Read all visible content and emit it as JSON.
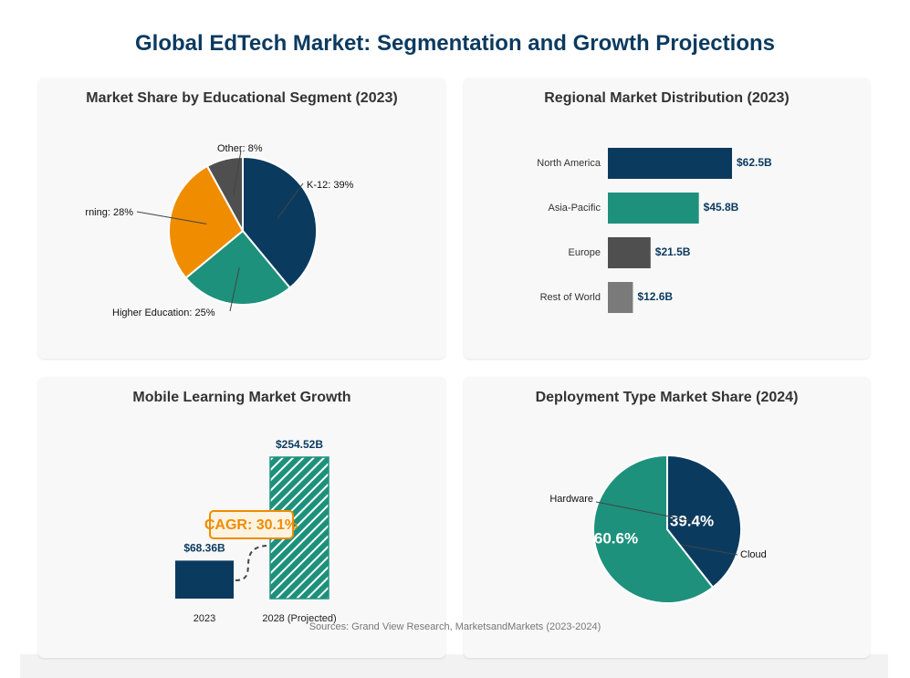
{
  "title": "Global EdTech Market: Segmentation and Growth Projections",
  "sources": "Sources: Grand View Research, MarketsandMarkets (2023-2024)",
  "colors": {
    "navy": "#0b3a5f",
    "teal": "#1d917c",
    "orange": "#f08c00",
    "dark_gray": "#4f4f4f",
    "gray": "#7a7a7a"
  },
  "chart_data": [
    {
      "type": "pie",
      "title": "Market Share by Educational Segment (2023)",
      "labels": [
        "K-12",
        "Higher Education",
        "Corporate Learning",
        "Other"
      ],
      "values": [
        39,
        25,
        28,
        8
      ],
      "display_labels": [
        "K-12: 39%",
        "Higher Education: 25%",
        "rning: 28%",
        "Other: 8%"
      ],
      "colors": [
        "#0b3a5f",
        "#1d917c",
        "#f08c00",
        "#4f4f4f"
      ]
    },
    {
      "type": "bar",
      "orientation": "horizontal",
      "title": "Regional Market Distribution (2023)",
      "categories": [
        "North America",
        "Asia-Pacific",
        "Europe",
        "Rest of World"
      ],
      "values": [
        62.5,
        45.8,
        21.5,
        12.6
      ],
      "value_labels": [
        "$62.5B",
        "$45.8B",
        "$21.5B",
        "$12.6B"
      ],
      "colors": [
        "#0b3a5f",
        "#1d917c",
        "#4f4f4f",
        "#7a7a7a"
      ]
    },
    {
      "type": "bar",
      "title": "Mobile Learning Market Growth",
      "categories": [
        "2023",
        "2028 (Projected)"
      ],
      "values": [
        68.36,
        254.52
      ],
      "value_labels": [
        "$68.36B",
        "$254.52B"
      ],
      "annotation": "CAGR: 30.1%",
      "colors": [
        "#0b3a5f",
        "#1d917c"
      ]
    },
    {
      "type": "pie",
      "title": "Deployment Type Market Share (2024)",
      "labels": [
        "Cloud",
        "Hardware"
      ],
      "values": [
        39.4,
        60.6
      ],
      "pct_labels": [
        "39.4%",
        "60.6%"
      ],
      "colors": [
        "#0b3a5f",
        "#1d917c"
      ]
    }
  ]
}
